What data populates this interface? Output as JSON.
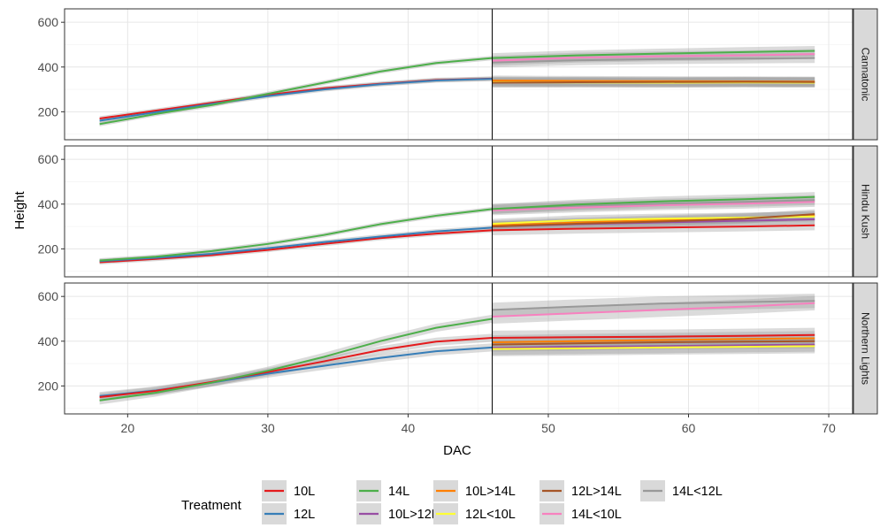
{
  "chart_data": {
    "type": "line",
    "xlabel": "DAC",
    "ylabel": "Height",
    "xlim": [
      15.5,
      71.7
    ],
    "ylim": [
      75,
      660
    ],
    "x_ticks": [
      20,
      30,
      40,
      50,
      60,
      70
    ],
    "y_ticks": [
      200,
      400,
      600
    ],
    "vline_x": 46,
    "grid": true,
    "legend_position": "bottom",
    "legend_title": "Treatment",
    "colors": {
      "10L": "#E41A1C",
      "12L": "#377EB8",
      "14L": "#4DAF4A",
      "10L>12L": "#984EA3",
      "10L>14L": "#FF7F00",
      "12L<10L": "#FFFF33",
      "12L>14L": "#A65628",
      "14L<10L": "#F781BF",
      "14L<12L": "#999999"
    },
    "legend": [
      "10L",
      "12L",
      "14L",
      "10L>12L",
      "10L>14L",
      "12L<10L",
      "12L>14L",
      "14L<10L",
      "14L<12L"
    ],
    "panels": [
      {
        "strip": "Cannatonic",
        "series": [
          {
            "name": "10L",
            "x": [
              18,
              22,
              26,
              30,
              34,
              38,
              42,
              46
            ],
            "y": [
              170,
              205,
              240,
              275,
              305,
              325,
              342,
              348
            ]
          },
          {
            "name": "12L",
            "x": [
              18,
              22,
              26,
              30,
              34,
              38,
              42,
              46
            ],
            "y": [
              160,
              198,
              235,
              270,
              300,
              323,
              340,
              347
            ]
          },
          {
            "name": "14L",
            "x": [
              18,
              22,
              26,
              30,
              34,
              38,
              42,
              46
            ],
            "y": [
              145,
              190,
              230,
              280,
              330,
              380,
              418,
              440
            ]
          },
          {
            "name": "10L>12L",
            "x": [
              46,
              52,
              58,
              64,
              69
            ],
            "y": [
              335,
              333,
              331,
              332,
              332
            ]
          },
          {
            "name": "10L>14L",
            "x": [
              46,
              52,
              58,
              64,
              69
            ],
            "y": [
              340,
              338,
              337,
              336,
              335
            ]
          },
          {
            "name": "12L<10L",
            "x": [
              46,
              52,
              58,
              64,
              69
            ],
            "y": [
              332,
              331,
              330,
              331,
              330
            ]
          },
          {
            "name": "12L>14L",
            "x": [
              46,
              52,
              58,
              64,
              69
            ],
            "y": [
              330,
              332,
              333,
              334,
              333
            ]
          },
          {
            "name": "14L<10L",
            "x": [
              46,
              52,
              58,
              64,
              69
            ],
            "y": [
              428,
              442,
              448,
              452,
              458
            ]
          },
          {
            "name": "14L<12L",
            "x": [
              46,
              52,
              58,
              64,
              69
            ],
            "y": [
              420,
              430,
              435,
              438,
              440
            ]
          },
          {
            "name": "14L",
            "x": [
              46,
              52,
              58,
              64,
              69
            ],
            "y": [
              440,
              452,
              460,
              467,
              472
            ]
          }
        ]
      },
      {
        "strip": "Hindu Kush",
        "series": [
          {
            "name": "10L",
            "x": [
              18,
              22,
              26,
              30,
              34,
              38,
              42,
              46
            ],
            "y": [
              140,
              155,
              172,
              195,
              222,
              248,
              268,
              283
            ]
          },
          {
            "name": "12L",
            "x": [
              18,
              22,
              26,
              30,
              34,
              38,
              42,
              46
            ],
            "y": [
              145,
              160,
              178,
              203,
              230,
              255,
              278,
              295
            ]
          },
          {
            "name": "14L",
            "x": [
              18,
              22,
              26,
              30,
              34,
              38,
              42,
              46
            ],
            "y": [
              148,
              165,
              190,
              222,
              262,
              310,
              348,
              378
            ]
          },
          {
            "name": "10L",
            "x": [
              46,
              52,
              58,
              64,
              69
            ],
            "y": [
              283,
              290,
              295,
              300,
              305
            ]
          },
          {
            "name": "10L>12L",
            "x": [
              46,
              52,
              58,
              64,
              69
            ],
            "y": [
              300,
              310,
              318,
              326,
              332
            ]
          },
          {
            "name": "10L>14L",
            "x": [
              46,
              52,
              58,
              64,
              69
            ],
            "y": [
              305,
              318,
              328,
              338,
              348
            ]
          },
          {
            "name": "12L<10L",
            "x": [
              46,
              52,
              58,
              64,
              69
            ],
            "y": [
              312,
              328,
              335,
              340,
              345
            ]
          },
          {
            "name": "12L>14L",
            "x": [
              46,
              52,
              58,
              64,
              69
            ],
            "y": [
              300,
              312,
              322,
              335,
              355
            ]
          },
          {
            "name": "14L<10L",
            "x": [
              46,
              52,
              58,
              64,
              69
            ],
            "y": [
              372,
              385,
              395,
              402,
              410
            ]
          },
          {
            "name": "14L<12L",
            "x": [
              46,
              52,
              58,
              64,
              69
            ],
            "y": [
              378,
              392,
              402,
              410,
              418
            ]
          },
          {
            "name": "14L",
            "x": [
              46,
              52,
              58,
              64,
              69
            ],
            "y": [
              378,
              398,
              412,
              422,
              432
            ]
          }
        ]
      },
      {
        "strip": "Northern Lights",
        "series": [
          {
            "name": "12L",
            "x": [
              18,
              22,
              26,
              30,
              34,
              38,
              42,
              46
            ],
            "y": [
              155,
              180,
              215,
              255,
              290,
              325,
              355,
              372
            ]
          },
          {
            "name": "10L",
            "x": [
              18,
              22,
              26,
              30,
              34,
              38,
              42,
              46
            ],
            "y": [
              150,
              178,
              218,
              262,
              310,
              360,
              398,
              415
            ]
          },
          {
            "name": "14L",
            "x": [
              18,
              22,
              26,
              30,
              34,
              38,
              42,
              46
            ],
            "y": [
              135,
              170,
              215,
              268,
              330,
              400,
              460,
              500
            ]
          },
          {
            "name": "10L",
            "x": [
              46,
              52,
              58,
              64,
              69
            ],
            "y": [
              415,
              418,
              420,
              424,
              428
            ]
          },
          {
            "name": "10L>12L",
            "x": [
              46,
              52,
              58,
              64,
              69
            ],
            "y": [
              370,
              375,
              378,
              382,
              385
            ]
          },
          {
            "name": "10L>14L",
            "x": [
              46,
              52,
              58,
              64,
              69
            ],
            "y": [
              395,
              400,
              405,
              410,
              413
            ]
          },
          {
            "name": "12L<10L",
            "x": [
              46,
              52,
              58,
              64,
              69
            ],
            "y": [
              365,
              368,
              372,
              375,
              378
            ]
          },
          {
            "name": "12L>14L",
            "x": [
              46,
              52,
              58,
              64,
              69
            ],
            "y": [
              385,
              390,
              395,
              398,
              400
            ]
          },
          {
            "name": "14L<10L",
            "x": [
              46,
              52,
              58,
              64,
              69
            ],
            "y": [
              510,
              525,
              540,
              555,
              570
            ]
          },
          {
            "name": "14L<12L",
            "x": [
              46,
              52,
              58,
              64,
              69
            ],
            "y": [
              540,
              555,
              568,
              575,
              580
            ]
          }
        ]
      }
    ]
  }
}
